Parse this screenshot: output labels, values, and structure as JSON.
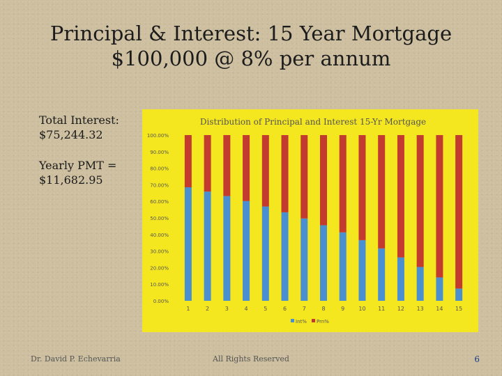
{
  "slide": {
    "title_line1": "Principal & Interest: 15 Year Mortgage",
    "title_line2": "$100,000 @ 8% per annum",
    "total_interest_label": "Total Interest:",
    "total_interest_value": "$75,244.32",
    "yearly_pmt_label": "Yearly PMT =",
    "yearly_pmt_value": "$11,682.95",
    "footer_author": "Dr. David P. Echevarria",
    "footer_rights": "All Rights Reserved",
    "page_number": "6"
  },
  "chart_data": {
    "type": "bar",
    "stacked": true,
    "title": "Distribution of Principal and Interest 15-Yr Mortgage",
    "categories": [
      "1",
      "2",
      "3",
      "4",
      "5",
      "6",
      "7",
      "8",
      "9",
      "10",
      "11",
      "12",
      "13",
      "14",
      "15"
    ],
    "ylim": [
      0,
      100
    ],
    "yticks": [
      "0.00%",
      "10.00%",
      "20.00%",
      "30.00%",
      "40.00%",
      "50.00%",
      "60.00%",
      "70.00%",
      "80.00%",
      "90.00%",
      "100.00%"
    ],
    "series": [
      {
        "name": "Int%",
        "color": "#4a8fd0",
        "values": [
          68.5,
          65.9,
          63.2,
          60.2,
          56.9,
          53.4,
          49.7,
          45.6,
          41.3,
          36.6,
          31.6,
          26.2,
          20.4,
          14.1,
          7.4
        ]
      },
      {
        "name": "Prn%",
        "color": "#c23b2e",
        "values": [
          31.5,
          34.1,
          36.8,
          39.8,
          43.1,
          46.6,
          50.3,
          54.4,
          58.7,
          63.4,
          68.4,
          73.8,
          79.6,
          85.9,
          92.6
        ]
      }
    ],
    "background": "#f4e61f",
    "legend_position": "bottom"
  }
}
